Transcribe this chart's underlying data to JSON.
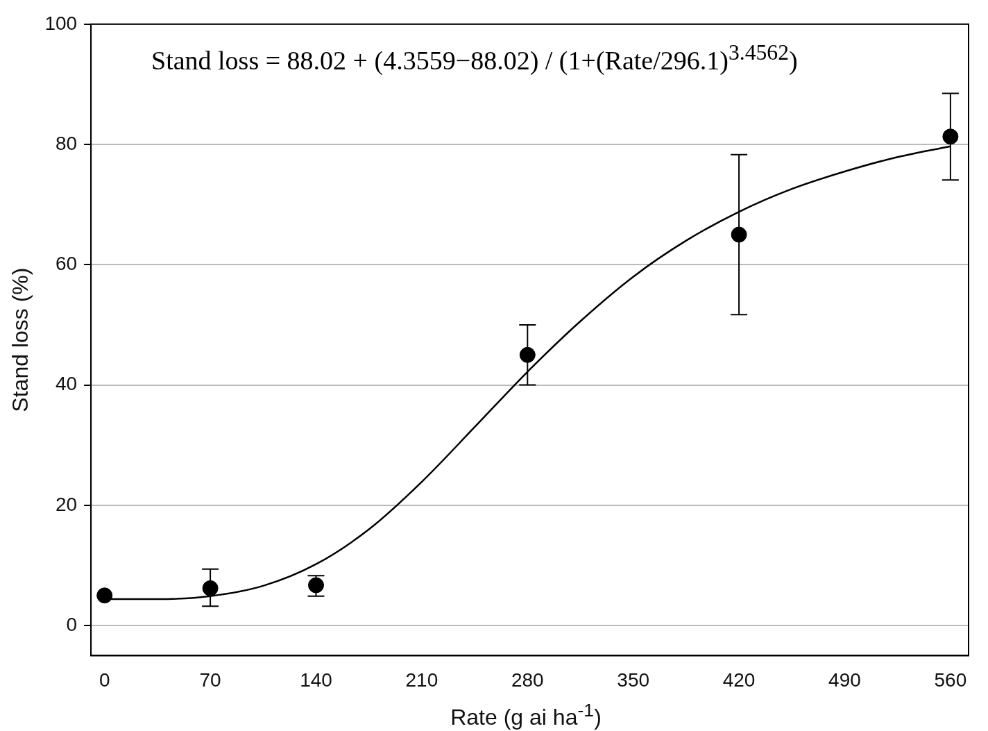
{
  "chart_data": {
    "type": "scatter",
    "xlabel": "Rate (g ai ha$^{-1}$)",
    "ylabel": "Stand loss (%)",
    "annotations": [
      "Stand loss = 88.02 + (4.3559−88.02) / (1+(Rate/296.1)$^{3.4562}$)"
    ],
    "xlim": [
      -9,
      572
    ],
    "xticks": [
      0,
      70,
      140,
      210,
      280,
      350,
      420,
      490,
      560
    ],
    "ylim": [
      -5,
      100
    ],
    "yticks": [
      0,
      20,
      40,
      60,
      80,
      100
    ],
    "grid": "y",
    "legend": false,
    "series": [
      {
        "type": "scatter",
        "color": "#000000",
        "marker": "circle",
        "x": [
          0,
          70,
          140,
          280,
          420,
          560
        ],
        "values": [
          5,
          6.2,
          6.7,
          45,
          65,
          81.3
        ],
        "errors": [
          null,
          [
            3.2,
            9.4
          ],
          [
            4.9,
            8.3
          ],
          [
            40,
            50
          ],
          [
            51.7,
            78.3
          ],
          [
            74.1,
            88.5
          ]
        ]
      },
      {
        "type": "line",
        "color": "#000000",
        "marker": "none",
        "line_style": "solid",
        "x": [
          0,
          35,
          70,
          105,
          140,
          175,
          210,
          245,
          280,
          315,
          350,
          385,
          420,
          455,
          490,
          525,
          560
        ],
        "values": [
          4.4,
          4.4,
          4.9,
          6.6,
          10.2,
          16,
          23.9,
          33,
          42.2,
          50.6,
          58,
          64,
          68.8,
          72.6,
          75.5,
          77.9,
          79.7
        ]
      }
    ]
  }
}
